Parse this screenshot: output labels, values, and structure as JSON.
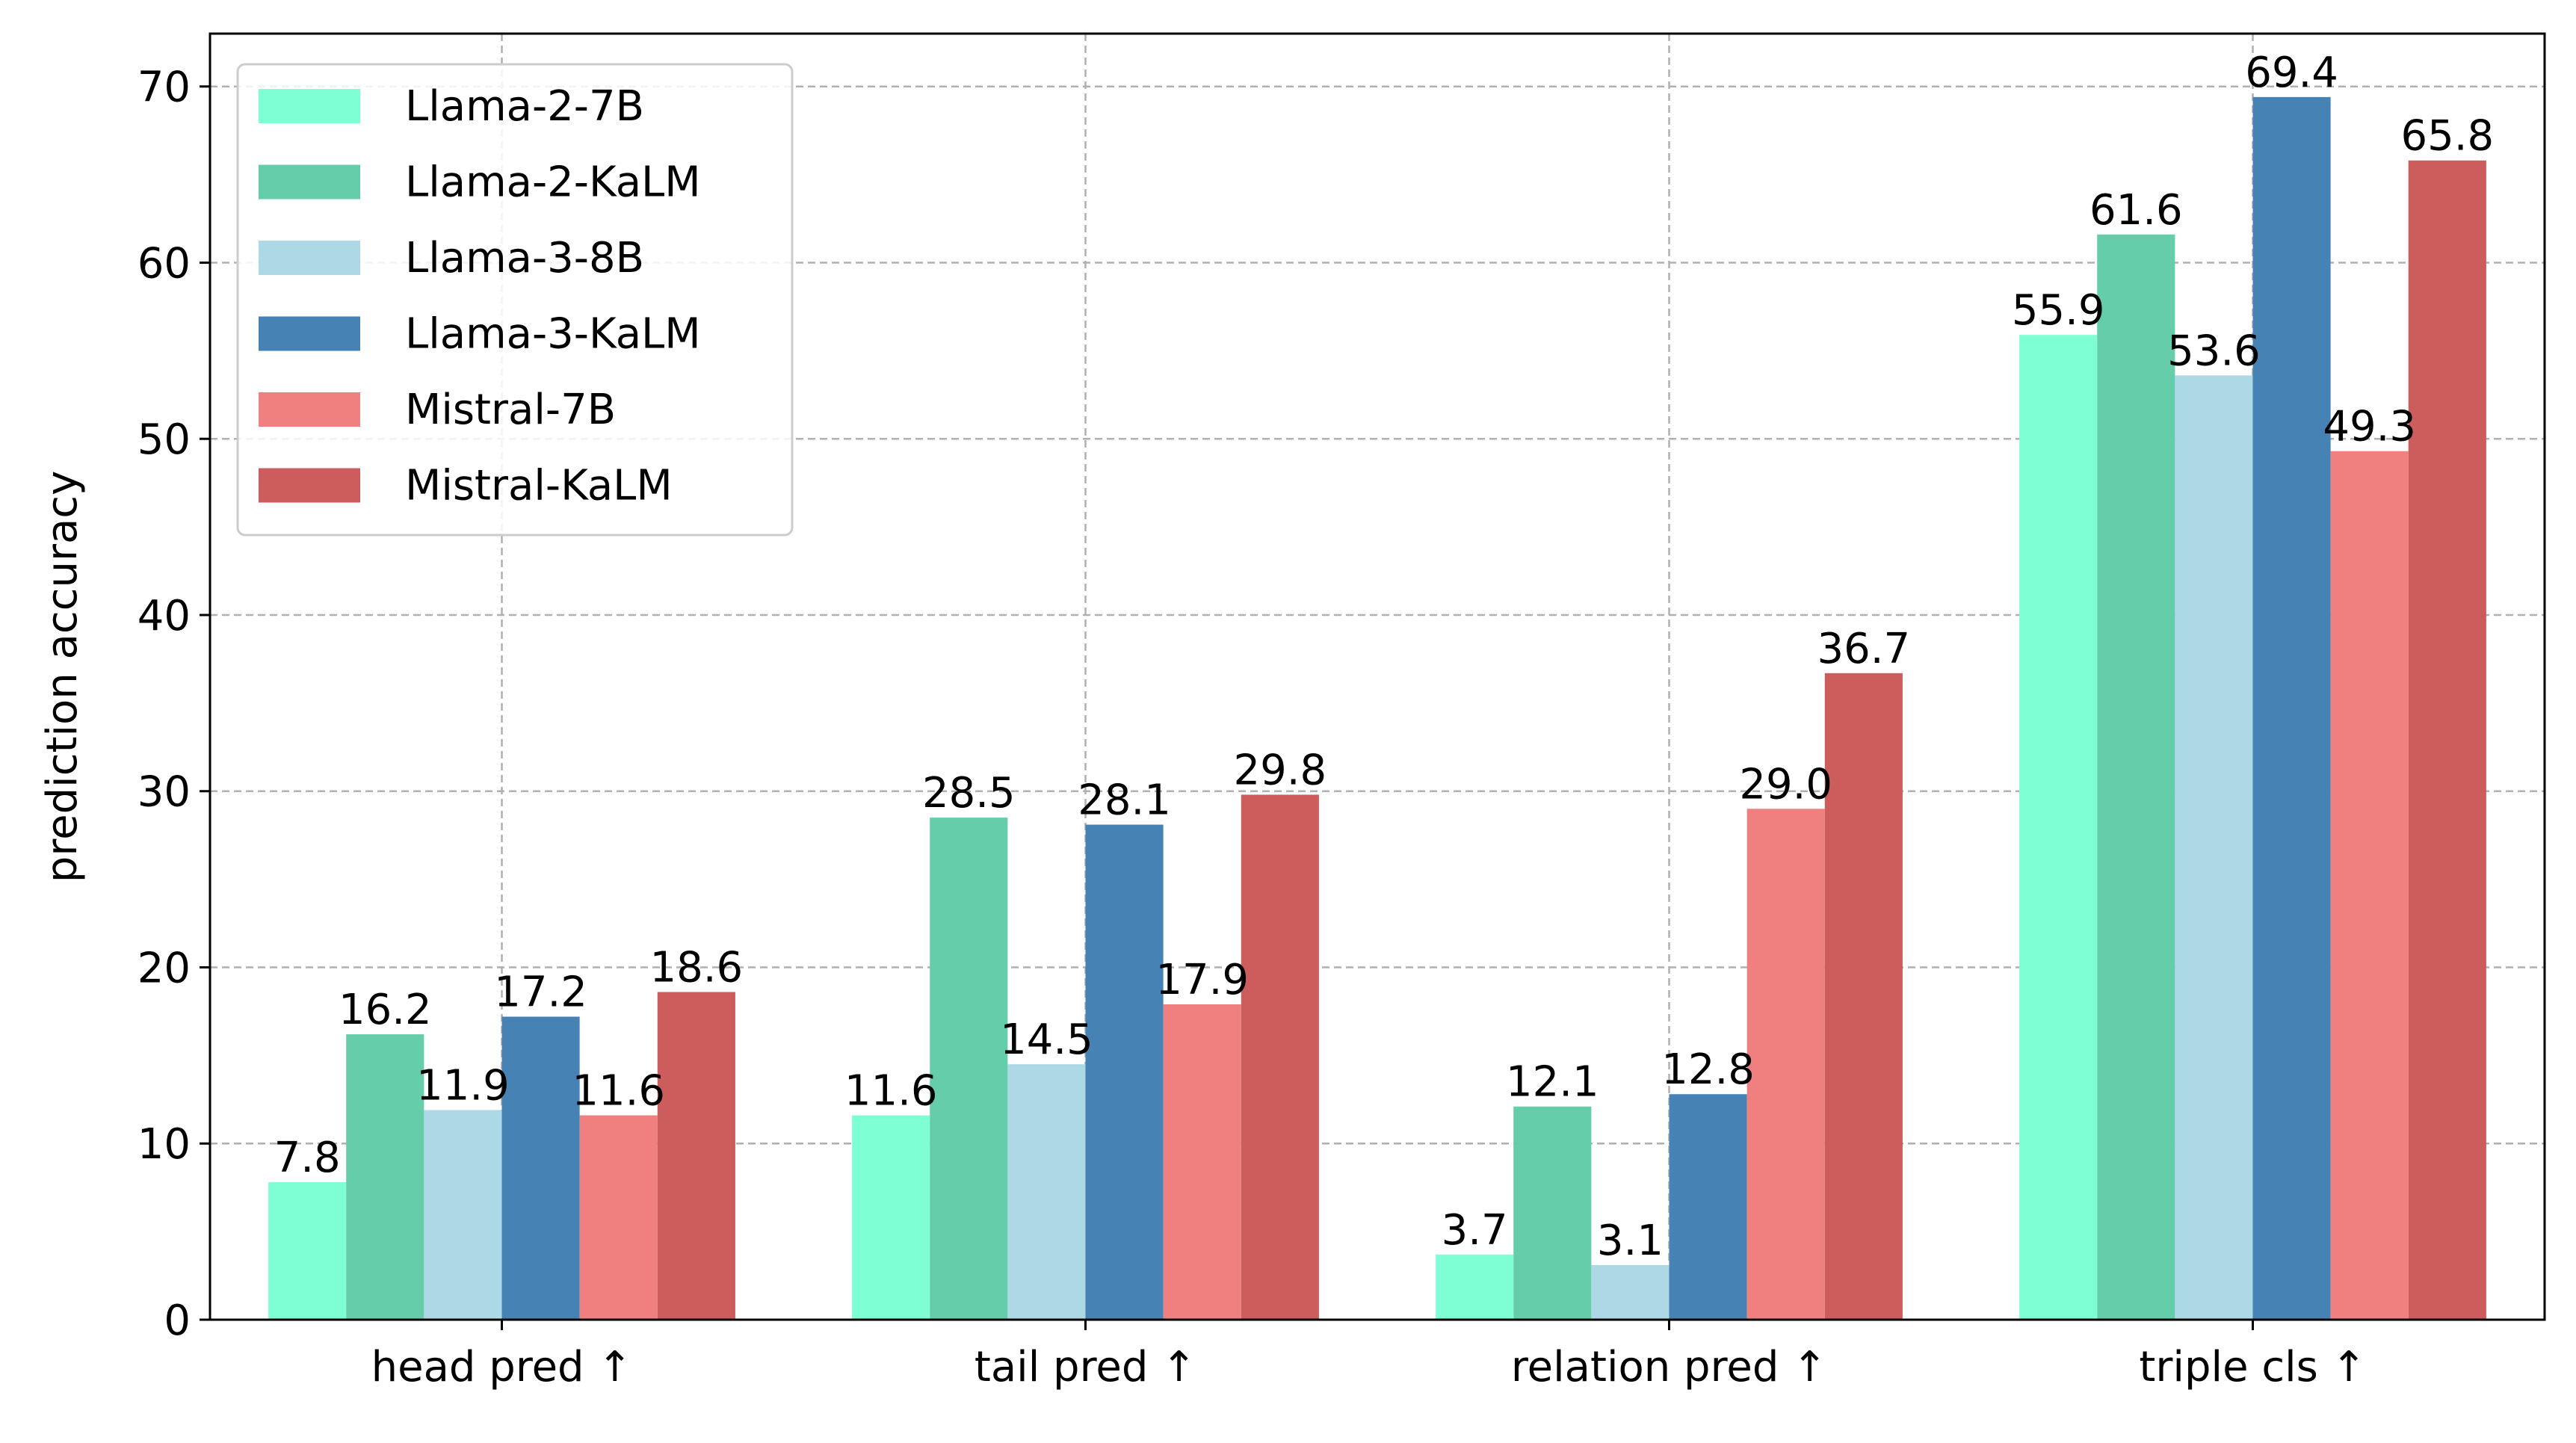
{
  "chart_data": {
    "type": "bar",
    "title": "",
    "xlabel": "",
    "ylabel": "prediction accuracy",
    "ylim": [
      0,
      73
    ],
    "yticks": [
      0,
      10,
      20,
      30,
      40,
      50,
      60,
      70
    ],
    "grid": true,
    "legend_position": "upper-left",
    "categories": [
      "head pred ↑",
      "tail pred ↑",
      "relation pred ↑",
      "triple cls ↑"
    ],
    "series": [
      {
        "name": "Llama-2-7B",
        "color": "#7fffd4",
        "values": [
          7.8,
          11.6,
          3.7,
          55.9
        ]
      },
      {
        "name": "Llama-2-KaLM",
        "color": "#66cdaa",
        "values": [
          16.2,
          28.5,
          12.1,
          61.6
        ]
      },
      {
        "name": "Llama-3-8B",
        "color": "#add8e6",
        "values": [
          11.9,
          14.5,
          3.1,
          53.6
        ]
      },
      {
        "name": "Llama-3-KaLM",
        "color": "#4682b4",
        "values": [
          17.2,
          28.1,
          12.8,
          69.4
        ]
      },
      {
        "name": "Mistral-7B",
        "color": "#f08080",
        "values": [
          11.6,
          17.9,
          29.0,
          49.3
        ]
      },
      {
        "name": "Mistral-KaLM",
        "color": "#cd5c5c",
        "values": [
          18.6,
          29.8,
          36.7,
          65.8
        ]
      }
    ]
  }
}
